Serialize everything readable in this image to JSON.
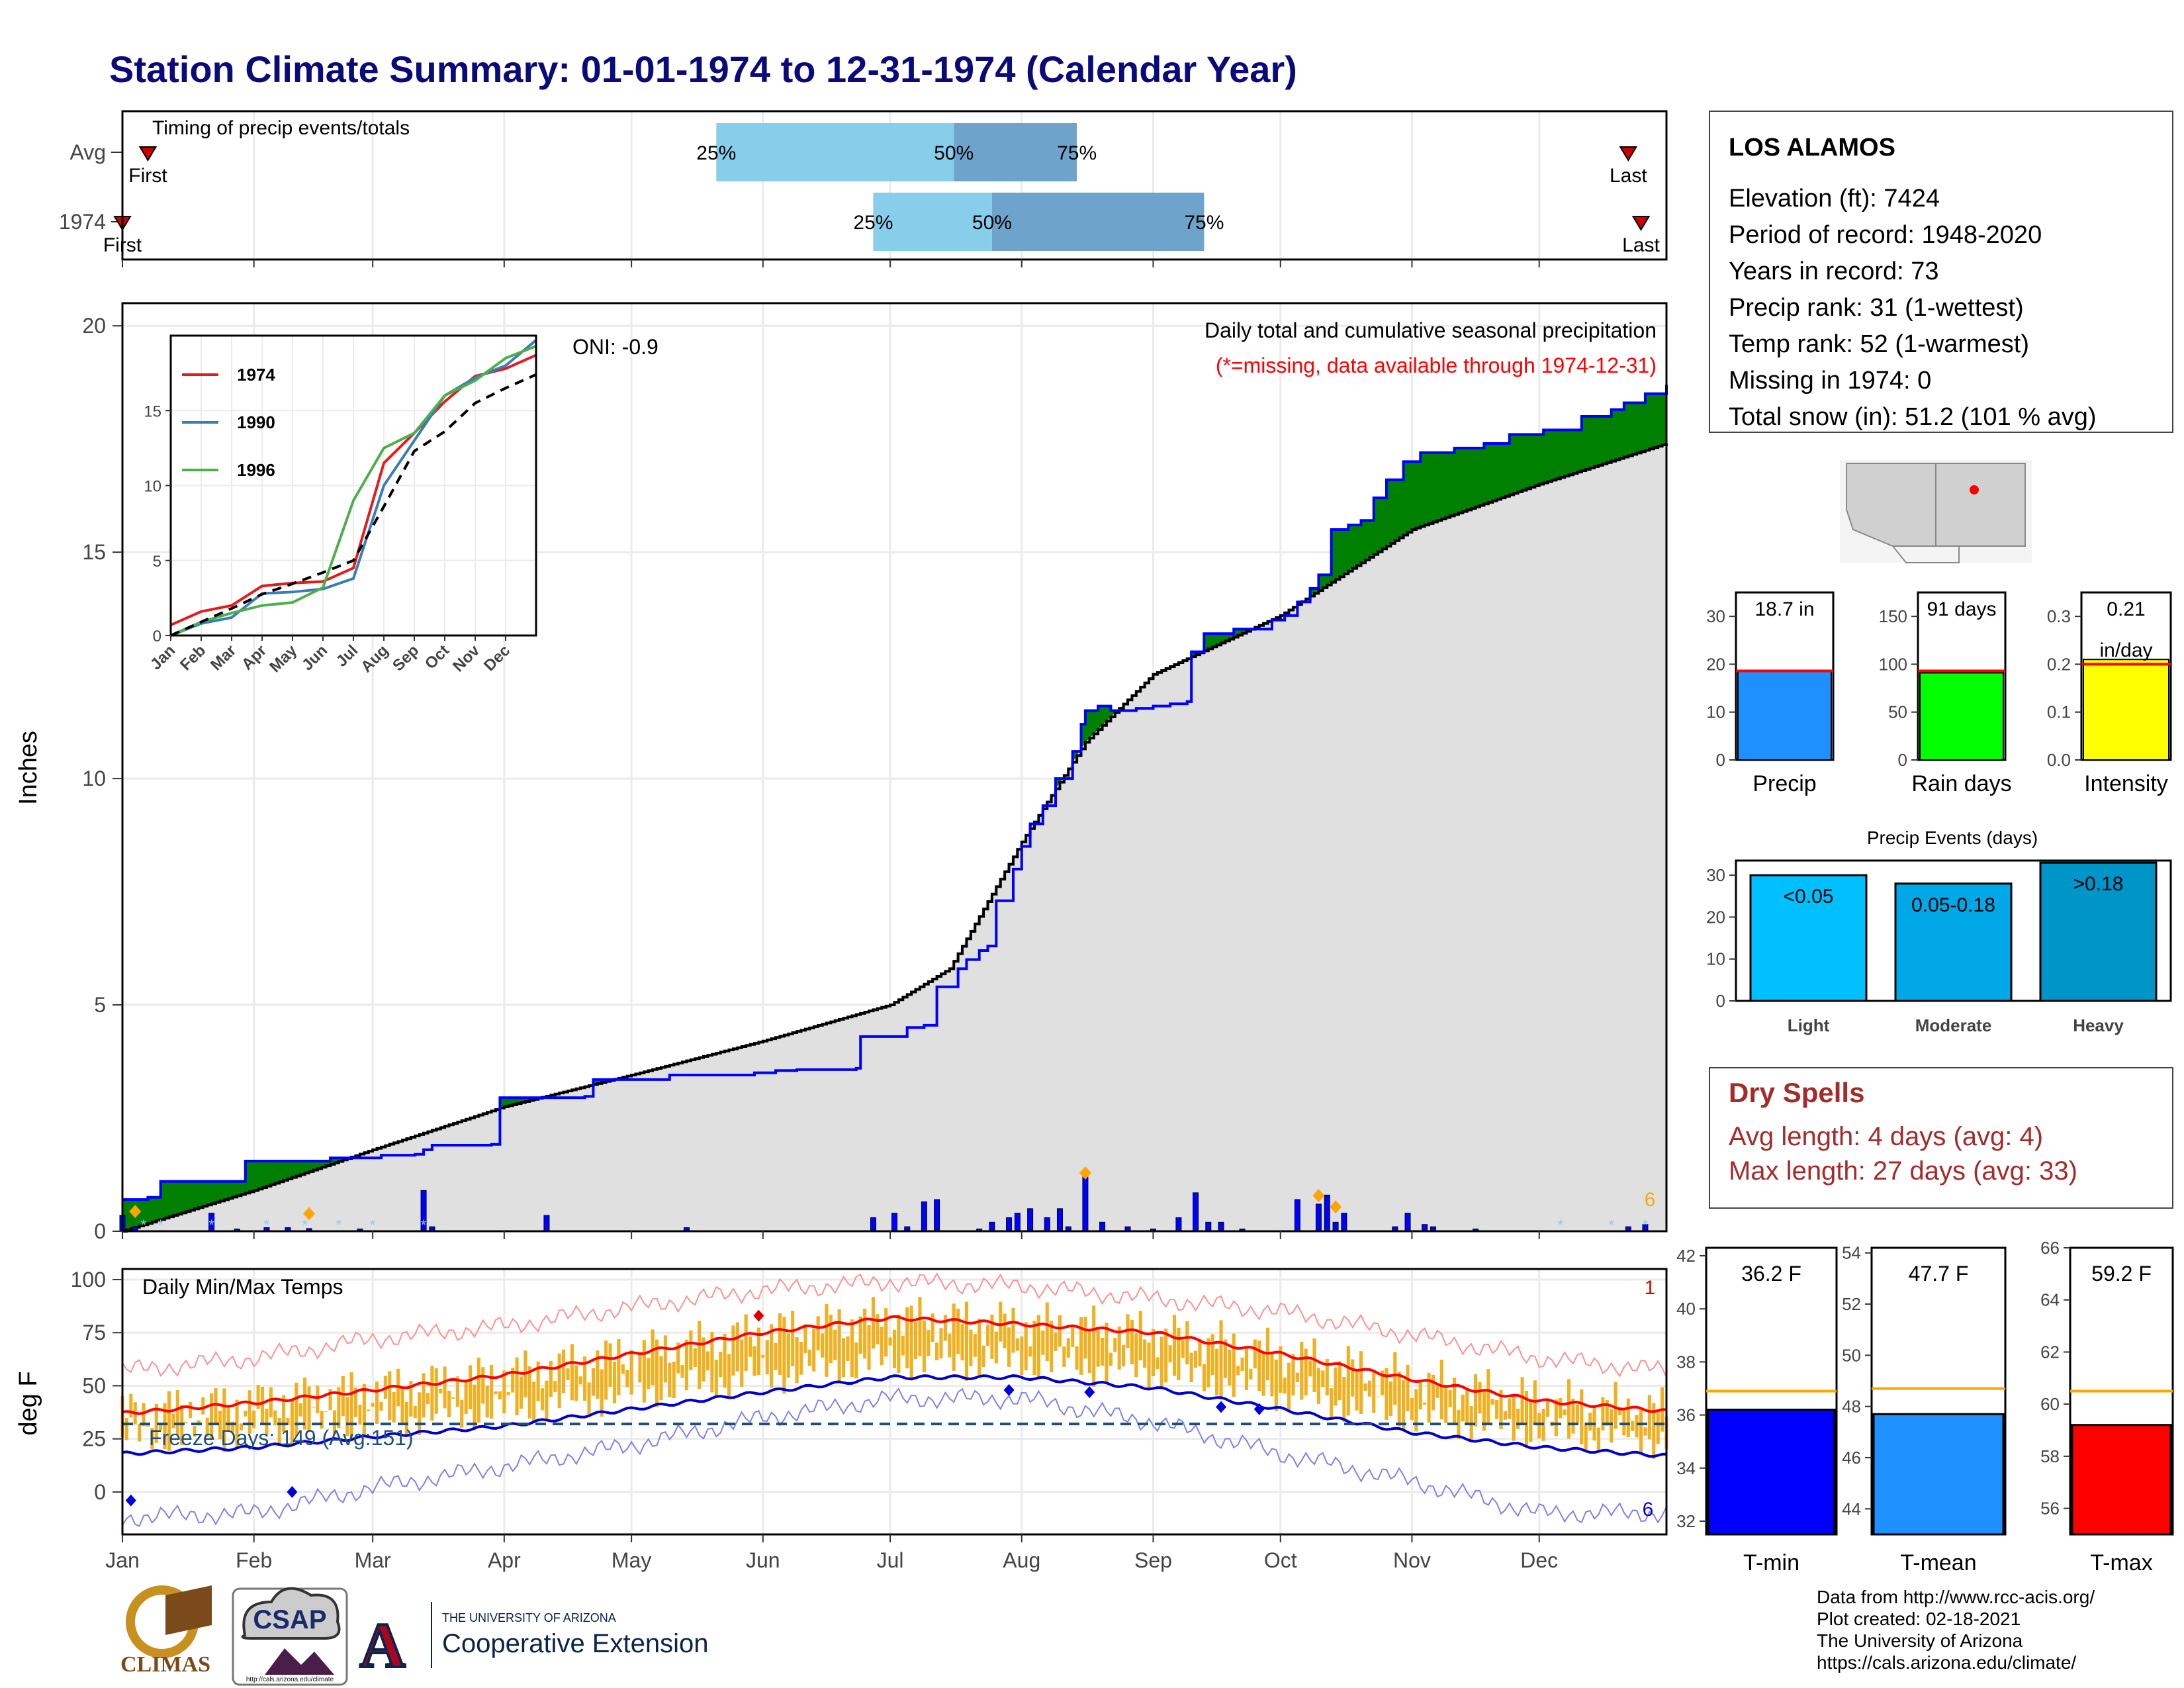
{
  "title": "Station Climate Summary: 01-01-1974 to 12-31-1974 (Calendar Year)",
  "colors": {
    "navy": "#0a0a7a",
    "green": "#008000",
    "brown": "#8b5a00",
    "gray_fill": "#e0e0e0",
    "cum_line": "#0000ff",
    "avg_line": "#000000",
    "orange": "#f0b020",
    "tmax_avg": "#ff0000",
    "tmin_avg": "#0000cc",
    "light_blue": "#87ceeb",
    "mid_blue": "#6ea4cc",
    "dry_red": "#a52a2a"
  },
  "timing_panel": {
    "title": "Timing of precip events/totals",
    "rows": [
      {
        "label": "Avg",
        "first_label": "First",
        "last_label": "Last",
        "p25": "25%",
        "p50": "50%",
        "p75": "75%",
        "q25_doy": 141,
        "q50_doy": 197,
        "q75_doy": 226,
        "first_doy": 7,
        "last_doy": 356
      },
      {
        "label": "1974",
        "first_label": "First",
        "last_label": "Last",
        "p25": "25%",
        "p50": "50%",
        "p75": "75%",
        "q25_doy": 178,
        "q50_doy": 206,
        "q75_doy": 256,
        "first_doy": 1,
        "last_doy": 359
      }
    ]
  },
  "precip_panel": {
    "ylabel": "Inches",
    "legend_title": "Daily total and cumulative seasonal precipitation",
    "missing_note": "(*=missing, data available through 1974-12-31)",
    "oni": "ONI: -0.9",
    "count_label": "6",
    "yticks": [
      "0",
      "5",
      "10",
      "15",
      "20"
    ]
  },
  "inset": {
    "series": [
      {
        "name": "1974",
        "color": "#e41a1c"
      },
      {
        "name": "1990",
        "color": "#377eb8"
      },
      {
        "name": "1996",
        "color": "#4daf4a"
      }
    ],
    "yticks": [
      "0",
      "5",
      "10",
      "15"
    ],
    "months": [
      "Jan",
      "Feb",
      "Mar",
      "Apr",
      "May",
      "Jun",
      "Jul",
      "Aug",
      "Sep",
      "Oct",
      "Nov",
      "Dec"
    ]
  },
  "temp_panel": {
    "ylabel": "deg F",
    "title": "Daily Min/Max Temps",
    "freeze_label": "Freeze Days: 149 (Avg:151)",
    "max_count": "1",
    "min_count": "6",
    "yticks": [
      "0",
      "25",
      "50",
      "75",
      "100"
    ]
  },
  "months": [
    "Jan",
    "Feb",
    "Mar",
    "Apr",
    "May",
    "Jun",
    "Jul",
    "Aug",
    "Sep",
    "Oct",
    "Nov",
    "Dec"
  ],
  "station": {
    "name": "LOS ALAMOS",
    "lines": [
      "Elevation (ft): 7424",
      "Period of record: 1948-2020",
      "Years in record: 73",
      "Precip rank: 31 (1-wettest)",
      "Temp rank: 52 (1-warmest)",
      "Missing in 1974: 0",
      "Total snow (in): 51.2 (101 % avg)"
    ]
  },
  "summary_bars": [
    {
      "label": "Precip",
      "value_text": "18.7 in",
      "value": 18.7,
      "avg": 18.6,
      "ymax": 35,
      "yticks": [
        "0",
        "10",
        "20",
        "30"
      ],
      "color": "#1e90ff"
    },
    {
      "label": "Rain days",
      "value_text": "91 days",
      "value": 91,
      "avg": 93,
      "ymax": 175,
      "yticks": [
        "0",
        "50",
        "100",
        "150"
      ],
      "color": "#00ff00"
    },
    {
      "label": "Intensity",
      "value_text": "0.21",
      "value_text2": "in/day",
      "value": 0.21,
      "avg": 0.2,
      "ymax": 0.35,
      "yticks": [
        "0.0",
        "0.1",
        "0.2",
        "0.3"
      ],
      "color": "#ffff00"
    }
  ],
  "events": {
    "title": "Precip Events (days)",
    "yticks": [
      "0",
      "10",
      "20",
      "30"
    ],
    "bars": [
      {
        "label": "Light",
        "range": "<0.05",
        "value": 30,
        "color": "#00bfff"
      },
      {
        "label": "Moderate",
        "range": "0.05-0.18",
        "value": 28,
        "color": "#00a8e8"
      },
      {
        "label": "Heavy",
        "range": ">0.18",
        "value": 33,
        "color": "#0095c8"
      }
    ]
  },
  "dry_spells": {
    "title": "Dry Spells",
    "avg_line": "Avg length: 4 days (avg: 4)",
    "max_line": "Max length: 27 days (avg: 33)"
  },
  "temp_bars": [
    {
      "label": "T-min",
      "value_text": "36.2 F",
      "value": 36.2,
      "avg": 36.9,
      "ymin": 31.5,
      "ymax": 42.3,
      "yticks": [
        "32",
        "34",
        "36",
        "38",
        "40",
        "42"
      ],
      "color": "#0000ff"
    },
    {
      "label": "T-mean",
      "value_text": "47.7 F",
      "value": 47.7,
      "avg": 48.7,
      "ymin": 43,
      "ymax": 54.2,
      "yticks": [
        "44",
        "46",
        "48",
        "50",
        "52",
        "54"
      ],
      "color": "#1e90ff"
    },
    {
      "label": "T-max",
      "value_text": "59.2 F",
      "value": 59.2,
      "avg": 60.5,
      "ymin": 55,
      "ymax": 66,
      "yticks": [
        "56",
        "58",
        "60",
        "62",
        "64",
        "66"
      ],
      "color": "#ff0000"
    }
  ],
  "credits": [
    "Data from http://www.rcc-acis.org/",
    "Plot created: 02-18-2021",
    "The University of Arizona",
    "https://cals.arizona.edu/climate/"
  ],
  "logos": {
    "climas": "CLIMAS",
    "csap": "CSAP",
    "csap_url": "http://cals.arizona.edu/climate",
    "ua_line1": "THE UNIVERSITY OF ARIZONA",
    "ua_line2": "Cooperative Extension"
  },
  "chart_data": [
    {
      "type": "area",
      "name": "cumulative_precip",
      "x_unit": "day of year",
      "ylabel": "Inches",
      "ylim": [
        0,
        20.5
      ],
      "cumulative_1974": [
        [
          1,
          0.7
        ],
        [
          7,
          0.75
        ],
        [
          10,
          1.1
        ],
        [
          25,
          1.1
        ],
        [
          30,
          1.55
        ],
        [
          45,
          1.55
        ],
        [
          50,
          1.62
        ],
        [
          60,
          1.62
        ],
        [
          62,
          1.68
        ],
        [
          70,
          1.7
        ],
        [
          72,
          1.8
        ],
        [
          74,
          1.9
        ],
        [
          88,
          1.92
        ],
        [
          90,
          2.95
        ],
        [
          110,
          2.98
        ],
        [
          112,
          3.35
        ],
        [
          128,
          3.35
        ],
        [
          130,
          3.45
        ],
        [
          150,
          3.5
        ],
        [
          155,
          3.55
        ],
        [
          160,
          3.57
        ],
        [
          174,
          3.6
        ],
        [
          175,
          4.3
        ],
        [
          185,
          4.3
        ],
        [
          186,
          4.5
        ],
        [
          190,
          4.55
        ],
        [
          193,
          5.4
        ],
        [
          198,
          5.8
        ],
        [
          200,
          6.0
        ],
        [
          203,
          6.2
        ],
        [
          205,
          6.3
        ],
        [
          207,
          7.3
        ],
        [
          211,
          8.0
        ],
        [
          213,
          8.5
        ],
        [
          215,
          9.0
        ],
        [
          218,
          9.4
        ],
        [
          221,
          10.0
        ],
        [
          225,
          10.6
        ],
        [
          227,
          11.2
        ],
        [
          228,
          11.5
        ],
        [
          231,
          11.6
        ],
        [
          234,
          11.5
        ],
        [
          240,
          11.55
        ],
        [
          244,
          11.6
        ],
        [
          248,
          11.65
        ],
        [
          252,
          11.7
        ],
        [
          253,
          12.8
        ],
        [
          256,
          13.2
        ],
        [
          263,
          13.3
        ],
        [
          268,
          13.3
        ],
        [
          272,
          13.5
        ],
        [
          275,
          13.6
        ],
        [
          278,
          13.9
        ],
        [
          281,
          14.2
        ],
        [
          283,
          14.5
        ],
        [
          286,
          15.5
        ],
        [
          290,
          15.6
        ],
        [
          293,
          15.7
        ],
        [
          296,
          16.2
        ],
        [
          299,
          16.6
        ],
        [
          303,
          17.0
        ],
        [
          307,
          17.2
        ],
        [
          315,
          17.3
        ],
        [
          322,
          17.4
        ],
        [
          328,
          17.6
        ],
        [
          336,
          17.7
        ],
        [
          345,
          18.0
        ],
        [
          352,
          18.15
        ],
        [
          355,
          18.3
        ],
        [
          360,
          18.5
        ],
        [
          365,
          18.7
        ]
      ],
      "cumulative_average": [
        [
          1,
          0.0
        ],
        [
          32,
          0.9
        ],
        [
          60,
          1.8
        ],
        [
          91,
          2.75
        ],
        [
          121,
          3.45
        ],
        [
          152,
          4.2
        ],
        [
          182,
          5.0
        ],
        [
          196,
          5.8
        ],
        [
          213,
          8.6
        ],
        [
          228,
          10.8
        ],
        [
          244,
          12.3
        ],
        [
          274,
          13.6
        ],
        [
          305,
          15.5
        ],
        [
          335,
          16.5
        ],
        [
          365,
          17.4
        ]
      ],
      "daily_precip": [
        [
          1,
          0.35
        ],
        [
          4,
          0.1
        ],
        [
          22,
          0.4
        ],
        [
          28,
          0.05
        ],
        [
          35,
          0.08
        ],
        [
          40,
          0.08
        ],
        [
          45,
          0.06
        ],
        [
          57,
          0.05
        ],
        [
          72,
          0.9
        ],
        [
          74,
          0.1
        ],
        [
          101,
          0.35
        ],
        [
          134,
          0.08
        ],
        [
          178,
          0.3
        ],
        [
          183,
          0.4
        ],
        [
          186,
          0.1
        ],
        [
          190,
          0.65
        ],
        [
          193,
          0.7
        ],
        [
          203,
          0.05
        ],
        [
          206,
          0.2
        ],
        [
          210,
          0.3
        ],
        [
          212,
          0.4
        ],
        [
          215,
          0.5
        ],
        [
          219,
          0.3
        ],
        [
          222,
          0.5
        ],
        [
          224,
          0.1
        ],
        [
          228,
          1.2
        ],
        [
          232,
          0.2
        ],
        [
          238,
          0.1
        ],
        [
          244,
          0.05
        ],
        [
          250,
          0.3
        ],
        [
          254,
          0.85
        ],
        [
          257,
          0.2
        ],
        [
          260,
          0.2
        ],
        [
          265,
          0.05
        ],
        [
          278,
          0.7
        ],
        [
          283,
          0.6
        ],
        [
          285,
          0.8
        ],
        [
          287,
          0.2
        ],
        [
          289,
          0.4
        ],
        [
          301,
          0.1
        ],
        [
          304,
          0.4
        ],
        [
          308,
          0.15
        ],
        [
          310,
          0.1
        ],
        [
          320,
          0.05
        ],
        [
          356,
          0.1
        ],
        [
          360,
          0.15
        ]
      ]
    },
    {
      "type": "line",
      "name": "inset_cumulative_comparison",
      "x": [
        "Jan",
        "Feb",
        "Mar",
        "Apr",
        "May",
        "Jun",
        "Jul",
        "Aug",
        "Sep",
        "Oct",
        "Nov",
        "Dec",
        "end"
      ],
      "ylim": [
        0,
        20
      ],
      "series": [
        {
          "name": "1974",
          "values": [
            0.7,
            1.6,
            2.0,
            3.3,
            3.5,
            3.6,
            4.5,
            11.5,
            13.5,
            15.6,
            17.3,
            17.8,
            18.7
          ]
        },
        {
          "name": "1990",
          "values": [
            0.0,
            0.8,
            1.2,
            2.8,
            2.9,
            3.1,
            3.8,
            10.0,
            13.0,
            16.0,
            17.2,
            18.0,
            19.7
          ]
        },
        {
          "name": "1996",
          "values": [
            0.0,
            0.9,
            1.5,
            2.0,
            2.2,
            3.2,
            9.0,
            12.5,
            13.5,
            16.0,
            17.0,
            18.5,
            19.3
          ]
        }
      ],
      "average": [
        0.0,
        0.9,
        1.8,
        2.75,
        3.45,
        4.2,
        5.0,
        8.6,
        12.3,
        13.6,
        15.5,
        16.5,
        17.4
      ]
    },
    {
      "type": "line",
      "name": "daily_temperatures",
      "x_unit": "day of year",
      "ylabel": "deg F",
      "ylim": [
        -20,
        105
      ],
      "tmax_avg": [
        [
          1,
          37
        ],
        [
          32,
          42
        ],
        [
          60,
          48
        ],
        [
          91,
          55
        ],
        [
          121,
          65
        ],
        [
          152,
          75
        ],
        [
          182,
          82
        ],
        [
          213,
          79
        ],
        [
          244,
          75
        ],
        [
          274,
          65
        ],
        [
          305,
          53
        ],
        [
          335,
          43
        ],
        [
          365,
          38
        ]
      ],
      "tmin_avg": [
        [
          1,
          18
        ],
        [
          32,
          21
        ],
        [
          60,
          26
        ],
        [
          91,
          31
        ],
        [
          121,
          39
        ],
        [
          152,
          47
        ],
        [
          182,
          54
        ],
        [
          213,
          54
        ],
        [
          244,
          49
        ],
        [
          274,
          39
        ],
        [
          305,
          28
        ],
        [
          335,
          21
        ],
        [
          365,
          17
        ]
      ],
      "record_high": [
        [
          1,
          57
        ],
        [
          32,
          63
        ],
        [
          60,
          72
        ],
        [
          91,
          78
        ],
        [
          121,
          87
        ],
        [
          152,
          95
        ],
        [
          182,
          99
        ],
        [
          213,
          97
        ],
        [
          244,
          91
        ],
        [
          274,
          85
        ],
        [
          305,
          74
        ],
        [
          335,
          63
        ],
        [
          365,
          57
        ]
      ],
      "record_low": [
        [
          1,
          -12
        ],
        [
          32,
          -10
        ],
        [
          60,
          2
        ],
        [
          91,
          12
        ],
        [
          121,
          22
        ],
        [
          152,
          35
        ],
        [
          182,
          44
        ],
        [
          213,
          44
        ],
        [
          244,
          33
        ],
        [
          274,
          18
        ],
        [
          305,
          5
        ],
        [
          335,
          -10
        ],
        [
          365,
          -10
        ]
      ],
      "freeze_threshold": 32
    }
  ]
}
